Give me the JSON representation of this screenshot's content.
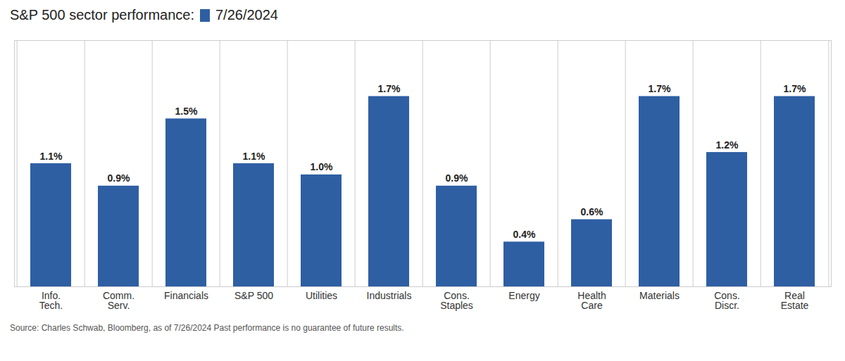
{
  "chart_data": {
    "type": "bar",
    "title": "S&P 500 sector performance:",
    "caption": "Source: Charles Schwab, Bloomberg, as of 7/26/2024 Past performance is no guarantee of future results.",
    "categories": [
      "Info.\nTech.",
      "Comm.\nServ.",
      "Financials",
      "S&P 500",
      "Utilities",
      "Industrials",
      "Cons.\nStaples",
      "Energy",
      "Health\nCare",
      "Materials",
      "Cons.\nDiscr.",
      "Real\nEstate"
    ],
    "series": [
      {
        "name": "7/26/2024",
        "color": "#2e5fa3",
        "values": [
          1.1,
          0.9,
          1.5,
          1.1,
          1.0,
          1.7,
          0.9,
          0.4,
          0.6,
          1.7,
          1.2,
          1.7
        ],
        "value_labels": [
          "1.1%",
          "0.9%",
          "1.5%",
          "1.1%",
          "1.0%",
          "1.7%",
          "0.9%",
          "0.4%",
          "0.6%",
          "1.7%",
          "1.2%",
          "1.7%"
        ]
      }
    ],
    "ylim": [
      0,
      2.2
    ],
    "data_labels": true,
    "tick_labels": "x",
    "grid": "x",
    "legend": "top"
  }
}
